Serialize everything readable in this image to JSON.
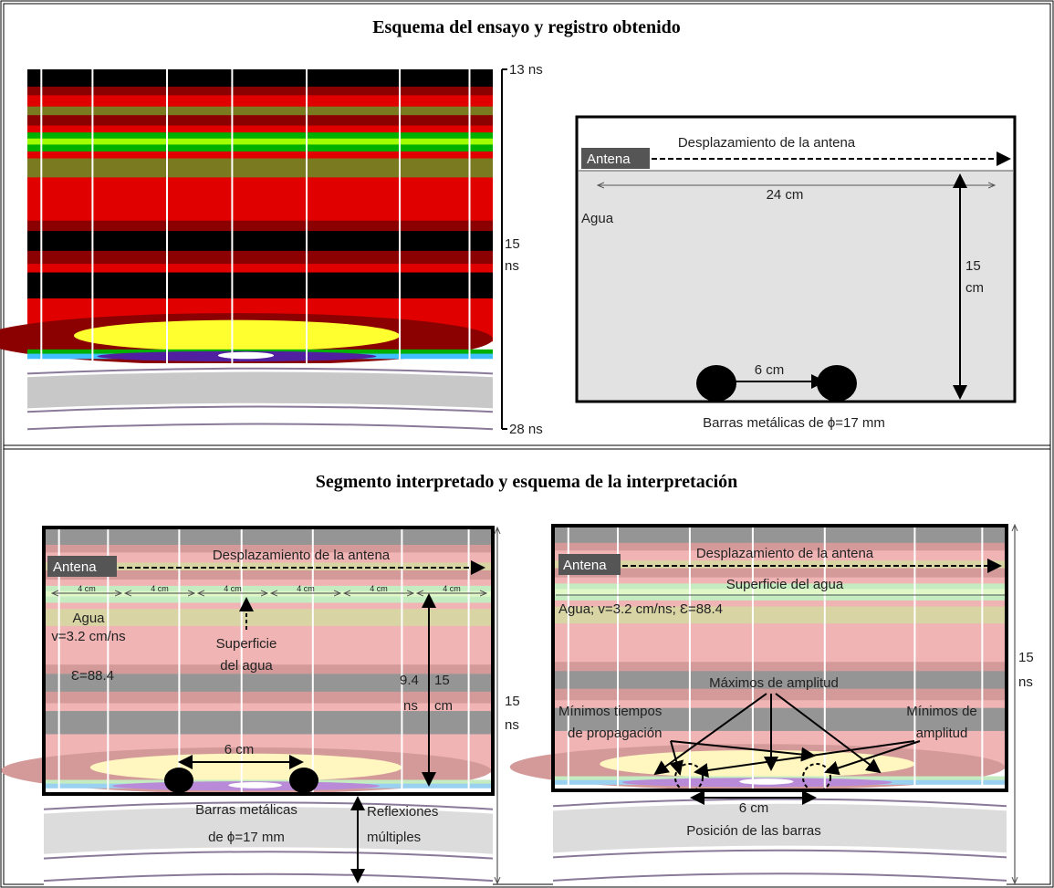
{
  "top": {
    "title": "Esquema del ensayo y registro obtenido",
    "record": {
      "time_top": "13 ns",
      "time_mid": [
        "15",
        "ns"
      ],
      "time_bottom": "28 ns"
    },
    "scheme": {
      "antenna": "Antena",
      "displacement": "Desplazamiento de la antena",
      "width": "24 cm",
      "medium": "Agua",
      "depth": [
        "15",
        "cm"
      ],
      "spacing": "6 cm",
      "bars": "Barras metálicas de ϕ=17 mm"
    }
  },
  "bottom": {
    "title": "Segmento interpretado y esquema de la interpretación",
    "segment": {
      "antenna": "Antena",
      "displacement": "Desplazamiento de la antena",
      "intervals": [
        "4 cm",
        "4 cm",
        "4 cm",
        "4 cm",
        "4 cm",
        "4 cm"
      ],
      "medium": [
        "Agua",
        "v=3.2 cm/ns",
        "Ɛ=88.4"
      ],
      "surface": [
        "Superficie",
        "del agua"
      ],
      "time": [
        "9.4",
        "ns"
      ],
      "depth": [
        "15",
        "cm"
      ],
      "spacing": "6 cm",
      "bars": [
        "Barras metálicas",
        "de ϕ=17 mm"
      ],
      "reflections": [
        "Reflexiones",
        "múltiples"
      ],
      "time_axis": [
        "15",
        "ns"
      ]
    },
    "interpretation": {
      "antenna": "Antena",
      "displacement": "Desplazamiento de la antena",
      "surface": "Superficie del agua",
      "medium": "Agua; v=3.2 cm/ns; Ɛ=88.4",
      "max_amplitude": "Máximos de amplitud",
      "min_times": [
        "Mínimos tiempos",
        "de propagación"
      ],
      "min_amplitude": [
        "Mínimos de",
        "amplitud"
      ],
      "spacing": "6 cm",
      "bar_position": "Posición de las barras",
      "time_axis": [
        "15",
        "ns"
      ]
    }
  }
}
